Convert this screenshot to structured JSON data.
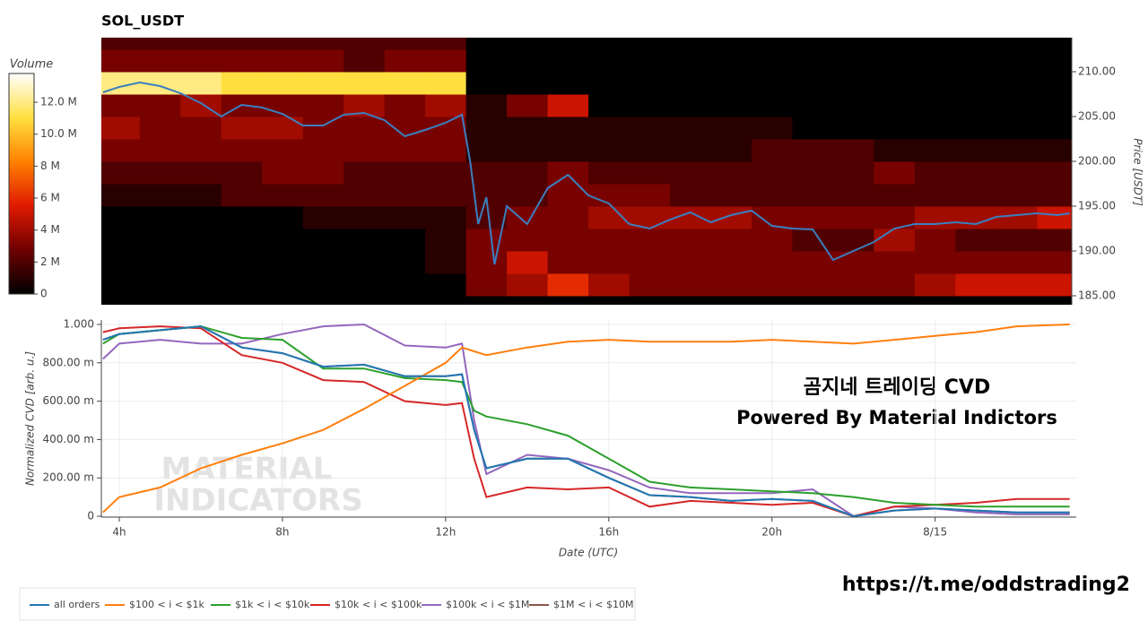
{
  "chart_data": [
    {
      "type": "heatmap",
      "title": "SOL_USDT",
      "y_label": "Price [USDT]",
      "xlim": [
        3.56,
        27.35
      ],
      "ylim": [
        184.0,
        213.8
      ],
      "yticks": [
        {
          "value": 185,
          "label": "185.00"
        },
        {
          "value": 190,
          "label": "190.00"
        },
        {
          "value": 195,
          "label": "195.00"
        },
        {
          "value": 200,
          "label": "200.00"
        },
        {
          "value": 205,
          "label": "205.00"
        },
        {
          "value": 210,
          "label": "210.00"
        }
      ],
      "x": [
        4,
        5,
        6,
        7,
        8,
        9,
        10,
        11,
        12,
        13,
        14,
        15,
        16,
        17,
        18,
        19,
        20,
        21,
        22,
        23,
        24,
        25,
        26,
        27
      ],
      "y": [
        186.25,
        188.75,
        191.25,
        193.75,
        196.25,
        198.75,
        201.25,
        203.75,
        206.25,
        208.75,
        211.25,
        213.75
      ],
      "z": [
        [
          0,
          0,
          0,
          0,
          0,
          0,
          0,
          0,
          0,
          3,
          4,
          6,
          4,
          3,
          3,
          3,
          3,
          3,
          3,
          3,
          4,
          5,
          5,
          5
        ],
        [
          0,
          0,
          0,
          0,
          0,
          0,
          0,
          0,
          1,
          3,
          5,
          3,
          3,
          3,
          3,
          3,
          3,
          3,
          3,
          3,
          3,
          3,
          3,
          3
        ],
        [
          0,
          0,
          0,
          0,
          0,
          0,
          0,
          0,
          1,
          3,
          3,
          3,
          3,
          3,
          3,
          3,
          3,
          2,
          2,
          4,
          3,
          2,
          2,
          2
        ],
        [
          0,
          0,
          0,
          0,
          0,
          1,
          1,
          1,
          1,
          2,
          3,
          3,
          4,
          4,
          4,
          4,
          3,
          3,
          3,
          3,
          4,
          4,
          4,
          5
        ],
        [
          1,
          1,
          1,
          2,
          2,
          2,
          2,
          2,
          2,
          2,
          2,
          3,
          3,
          3,
          2,
          2,
          2,
          2,
          2,
          2,
          2,
          2,
          2,
          2
        ],
        [
          2,
          2,
          2,
          2,
          3,
          3,
          2,
          2,
          2,
          2,
          2,
          3,
          2,
          2,
          2,
          2,
          2,
          2,
          2,
          3,
          2,
          2,
          2,
          2
        ],
        [
          3,
          3,
          3,
          3,
          3,
          3,
          3,
          3,
          3,
          1,
          1,
          1,
          1,
          1,
          1,
          1,
          2,
          2,
          2,
          1,
          1,
          1,
          1,
          1
        ],
        [
          4,
          3,
          3,
          4,
          4,
          3,
          3,
          3,
          3,
          1,
          1,
          1,
          1,
          1,
          1,
          1,
          1,
          0,
          0,
          0,
          0,
          0,
          0,
          0
        ],
        [
          3,
          3,
          4,
          3,
          3,
          3,
          4,
          3,
          4,
          1,
          3,
          5,
          0,
          0,
          0,
          0,
          0,
          0,
          0,
          0,
          0,
          0,
          0,
          0
        ],
        [
          12,
          12,
          12,
          11,
          11,
          11,
          11,
          11,
          11,
          0,
          0,
          0,
          0,
          0,
          0,
          0,
          0,
          0,
          0,
          0,
          0,
          0,
          0,
          0
        ],
        [
          3,
          3,
          3,
          3,
          3,
          3,
          2,
          3,
          3,
          0,
          0,
          0,
          0,
          0,
          0,
          0,
          0,
          0,
          0,
          0,
          0,
          0,
          0,
          0
        ],
        [
          2,
          2,
          2,
          2,
          2,
          2,
          2,
          2,
          2,
          0,
          0,
          0,
          0,
          0,
          0,
          0,
          0,
          0,
          0,
          0,
          0,
          0,
          0,
          0
        ]
      ],
      "colorscale": [
        "#000000",
        "#6e0000",
        "#e01a00",
        "#ff8000",
        "#ffe040",
        "#ffffff"
      ],
      "colorbar": {
        "title": "Volume",
        "lim": [
          0,
          13.8
        ],
        "ticks": [
          0,
          {
            "value": 2,
            "label": "2 M"
          },
          {
            "value": 4,
            "label": "4 M"
          },
          {
            "value": 6,
            "label": "6 M"
          },
          {
            "value": 8,
            "label": "8 M"
          },
          {
            "value": 10,
            "label": "10.0 M"
          },
          {
            "value": 12,
            "label": "12.0 M"
          }
        ]
      },
      "overlay_line": {
        "color": "#3b7fbf",
        "x": [
          3.6,
          4,
          4.5,
          5,
          5.5,
          6,
          6.5,
          7,
          7.5,
          8,
          8.5,
          9,
          9.5,
          10,
          10.5,
          11,
          11.5,
          12,
          12.4,
          12.6,
          12.8,
          13,
          13.2,
          13.5,
          14,
          14.5,
          15,
          15.5,
          16,
          16.5,
          17,
          17.5,
          18,
          18.5,
          19,
          19.5,
          20,
          20.5,
          21,
          21.5,
          22,
          22.5,
          23,
          23.5,
          24,
          24.5,
          25,
          25.5,
          26,
          26.5,
          27,
          27.3
        ],
        "values": [
          207.7,
          208.3,
          208.8,
          208.4,
          207.6,
          206.5,
          205.0,
          206.3,
          206.0,
          205.3,
          204.0,
          204.0,
          205.2,
          205.4,
          204.6,
          202.8,
          203.5,
          204.3,
          205.2,
          200.0,
          193.0,
          196.0,
          188.5,
          195.0,
          193.0,
          197.0,
          198.5,
          196.2,
          195.3,
          193.0,
          192.5,
          193.5,
          194.3,
          193.2,
          194.0,
          194.5,
          192.8,
          192.5,
          192.4,
          189.0,
          190.0,
          191.0,
          192.5,
          193.0,
          193.0,
          193.2,
          193.0,
          193.8,
          194.0,
          194.2,
          194.0,
          194.2
        ]
      }
    },
    {
      "type": "line",
      "x_label": "Date (UTC)",
      "y_label": "Normalized CVD [arb. u.]",
      "grid": true,
      "xlim": [
        3.56,
        27.35
      ],
      "ylim": [
        0,
        1
      ],
      "xticks": [
        {
          "value": 4,
          "label": "4h"
        },
        {
          "value": 8,
          "label": "8h"
        },
        {
          "value": 12,
          "label": "12h"
        },
        {
          "value": 16,
          "label": "16h"
        },
        {
          "value": 20,
          "label": "20h"
        },
        {
          "value": 24,
          "label": "8/15"
        }
      ],
      "yticks": [
        0,
        {
          "value": 0.2,
          "label": "200.00 m"
        },
        {
          "value": 0.4,
          "label": "400.00 m"
        },
        {
          "value": 0.6,
          "label": "600.00 m"
        },
        {
          "value": 0.8,
          "label": "800.00 m"
        },
        {
          "value": 1,
          "label": "1.000"
        }
      ],
      "x": [
        3.6,
        4,
        5,
        6,
        7,
        8,
        9,
        10,
        11,
        12,
        12.4,
        12.7,
        13,
        14,
        15,
        16,
        17,
        18,
        19,
        20,
        21,
        22,
        23,
        24,
        25,
        26,
        27.3
      ],
      "series": [
        {
          "name": "all orders",
          "color": "#1f77b4",
          "values": [
            0.92,
            0.95,
            0.97,
            0.99,
            0.88,
            0.85,
            0.78,
            0.79,
            0.73,
            0.73,
            0.74,
            0.45,
            0.25,
            0.3,
            0.3,
            0.2,
            0.11,
            0.1,
            0.08,
            0.09,
            0.08,
            0.0,
            0.03,
            0.04,
            0.03,
            0.02,
            0.02
          ]
        },
        {
          "name": "$100 < i < $1k",
          "color": "#ff7f0e",
          "values": [
            0.02,
            0.1,
            0.15,
            0.25,
            0.32,
            0.38,
            0.45,
            0.56,
            0.68,
            0.8,
            0.88,
            0.86,
            0.84,
            0.88,
            0.91,
            0.92,
            0.91,
            0.91,
            0.91,
            0.92,
            0.91,
            0.9,
            0.92,
            0.94,
            0.96,
            0.99,
            1.0
          ]
        },
        {
          "name": "$1k < i < $10k",
          "color": "#2ca02c",
          "values": [
            0.9,
            0.95,
            0.97,
            0.99,
            0.93,
            0.92,
            0.77,
            0.77,
            0.72,
            0.71,
            0.7,
            0.55,
            0.52,
            0.48,
            0.42,
            0.3,
            0.18,
            0.15,
            0.14,
            0.13,
            0.12,
            0.1,
            0.07,
            0.06,
            0.05,
            0.05,
            0.05
          ]
        },
        {
          "name": "$10k < i < $100k",
          "color": "#d62728",
          "values": [
            0.96,
            0.98,
            0.99,
            0.98,
            0.84,
            0.8,
            0.71,
            0.7,
            0.6,
            0.58,
            0.59,
            0.3,
            0.1,
            0.15,
            0.14,
            0.15,
            0.05,
            0.08,
            0.07,
            0.06,
            0.07,
            0.0,
            0.05,
            0.06,
            0.07,
            0.09,
            0.09
          ]
        },
        {
          "name": "$100k < i < $1M",
          "color": "#9467bd",
          "values": [
            0.82,
            0.9,
            0.92,
            0.9,
            0.9,
            0.95,
            0.99,
            1.0,
            0.89,
            0.88,
            0.9,
            0.5,
            0.22,
            0.32,
            0.3,
            0.24,
            0.15,
            0.12,
            0.12,
            0.12,
            0.14,
            0.0,
            0.05,
            0.04,
            0.02,
            0.01,
            0.01
          ]
        },
        {
          "name": "$1M < i < $10M",
          "color": "#8c564b",
          "values": [
            0.92,
            0.95,
            0.97,
            0.99,
            0.88,
            0.85,
            0.78,
            0.79,
            0.73,
            0.73,
            0.74,
            0.45,
            0.25,
            0.3,
            0.3,
            0.2,
            0.11,
            0.1,
            0.08,
            0.09,
            0.08,
            0.0,
            0.03,
            0.04,
            0.03,
            0.02,
            0.02
          ]
        }
      ],
      "annotations": [
        "곰지네 트레이딩 CVD",
        "Powered By Material Indictors"
      ],
      "watermark": [
        "MATERIAL",
        "INDICATORS"
      ]
    }
  ],
  "link": "https://t.me/oddstrading2"
}
